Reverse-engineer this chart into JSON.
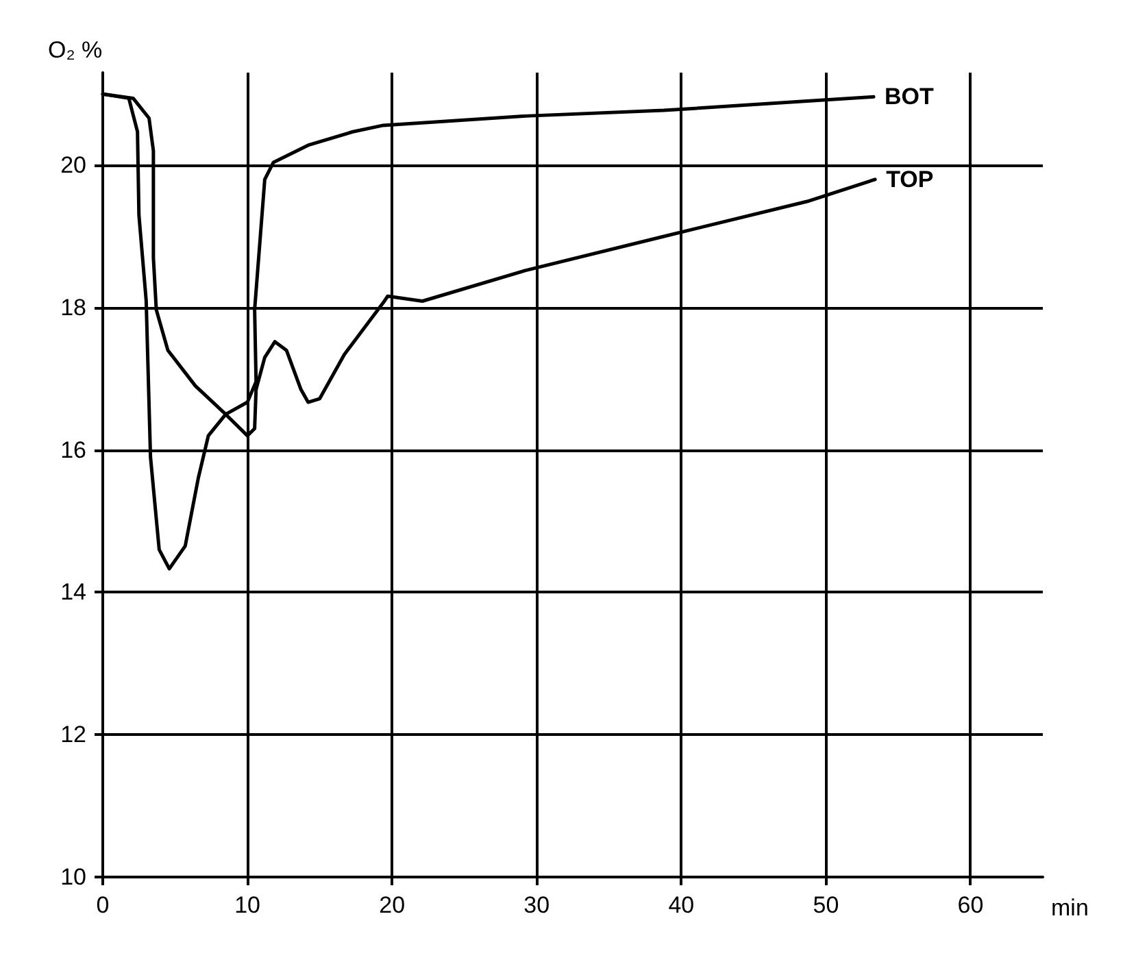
{
  "chart_data": {
    "type": "line",
    "xlabel": "min",
    "ylabel": "O₂ %",
    "xlim": [
      0,
      65
    ],
    "ylim": [
      10,
      21.3
    ],
    "xticks": [
      0,
      10,
      20,
      30,
      40,
      50,
      60
    ],
    "yticks": [
      10,
      12,
      14,
      16,
      18,
      20
    ],
    "grid": true,
    "marker": "none",
    "line_style": "solid",
    "series": [
      {
        "name": "BOT",
        "color": "#000000",
        "x": [
          0,
          1.8,
          2.4,
          2.5,
          3.0,
          3.3,
          3.9,
          4.6,
          5.7,
          6.6,
          7.3,
          8.5,
          10,
          10.6,
          10.5,
          11.2,
          11.8,
          14.2,
          17.3,
          19.4,
          29.2,
          38.8,
          48.7,
          53.3
        ],
        "values": [
          21,
          20.94,
          20.47,
          19.3,
          18.1,
          15.9,
          14.6,
          14.33,
          14.65,
          15.6,
          16.2,
          16.5,
          16.67,
          16.96,
          17.97,
          19.8,
          20.04,
          20.28,
          20.47,
          20.56,
          20.69,
          20.77,
          20.9,
          20.96
        ]
      },
      {
        "name": "TOP",
        "color": "#000000",
        "x": [
          0,
          2.1,
          3.2,
          3.5,
          3.5,
          3.7,
          4.5,
          6.4,
          8.5,
          10,
          10.5,
          10.6,
          11.2,
          11.9,
          12.7,
          13.7,
          14.2,
          15.0,
          16.7,
          19.4,
          19.7,
          22.1,
          29.2,
          38.8,
          48.7,
          53.4
        ],
        "values": [
          21,
          20.94,
          20.66,
          20.2,
          18.7,
          17.97,
          17.4,
          16.9,
          16.5,
          16.2,
          16.3,
          16.85,
          17.3,
          17.52,
          17.4,
          16.85,
          16.67,
          16.72,
          17.34,
          18.07,
          18.16,
          18.09,
          18.52,
          19.0,
          19.49,
          19.8
        ]
      }
    ]
  }
}
